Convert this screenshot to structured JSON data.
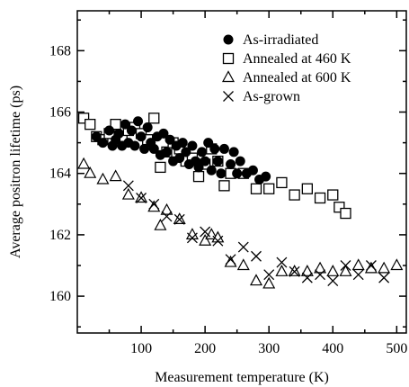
{
  "chart_data": {
    "type": "scatter",
    "title": "",
    "xlabel": "Measurement temperature (K)",
    "ylabel": "Average positron lifetime (ps)",
    "xlim": [
      0,
      515
    ],
    "ylim": [
      158.8,
      169.3
    ],
    "x_major_ticks": [
      100,
      200,
      300,
      400,
      500
    ],
    "x_minor_ticks": [
      50,
      150,
      250,
      350,
      450
    ],
    "y_major_ticks": [
      160,
      162,
      164,
      166,
      168
    ],
    "y_minor_ticks": [
      159,
      161,
      163,
      165,
      167,
      169
    ],
    "x_tick_labels": [
      "100",
      "200",
      "300",
      "400",
      "500"
    ],
    "y_tick_labels": [
      "160",
      "162",
      "164",
      "166",
      "168"
    ],
    "legend_position": "top-right",
    "grid": false,
    "series": [
      {
        "name": "As-irradiated",
        "marker": "filled-circle",
        "color": "#000000",
        "points": [
          [
            30,
            165.2
          ],
          [
            40,
            165.0
          ],
          [
            50,
            165.4
          ],
          [
            55,
            164.9
          ],
          [
            60,
            165.1
          ],
          [
            65,
            165.3
          ],
          [
            70,
            164.9
          ],
          [
            75,
            165.6
          ],
          [
            80,
            165.0
          ],
          [
            85,
            165.4
          ],
          [
            90,
            164.9
          ],
          [
            95,
            165.7
          ],
          [
            100,
            165.2
          ],
          [
            105,
            164.8
          ],
          [
            110,
            165.5
          ],
          [
            115,
            165.0
          ],
          [
            120,
            164.8
          ],
          [
            125,
            165.2
          ],
          [
            130,
            164.6
          ],
          [
            135,
            165.3
          ],
          [
            140,
            164.7
          ],
          [
            145,
            165.1
          ],
          [
            150,
            164.4
          ],
          [
            155,
            164.9
          ],
          [
            160,
            164.5
          ],
          [
            165,
            165.0
          ],
          [
            170,
            164.7
          ],
          [
            175,
            164.3
          ],
          [
            180,
            164.9
          ],
          [
            185,
            164.4
          ],
          [
            190,
            164.2
          ],
          [
            195,
            164.7
          ],
          [
            200,
            164.4
          ],
          [
            205,
            165.0
          ],
          [
            210,
            164.1
          ],
          [
            215,
            164.8
          ],
          [
            220,
            164.4
          ],
          [
            225,
            164.0
          ],
          [
            230,
            164.8
          ],
          [
            240,
            164.3
          ],
          [
            245,
            164.7
          ],
          [
            250,
            164.0
          ],
          [
            255,
            164.4
          ],
          [
            265,
            164.0
          ],
          [
            275,
            164.1
          ],
          [
            285,
            163.8
          ],
          [
            295,
            163.9
          ]
        ]
      },
      {
        "name": "Annealed at 460 K",
        "marker": "open-square",
        "color": "#000000",
        "points": [
          [
            10,
            165.8
          ],
          [
            20,
            165.6
          ],
          [
            30,
            165.2
          ],
          [
            40,
            165.1
          ],
          [
            50,
            165.3
          ],
          [
            60,
            165.6
          ],
          [
            70,
            165.2
          ],
          [
            80,
            165.4
          ],
          [
            90,
            165.5
          ],
          [
            100,
            165.3
          ],
          [
            110,
            165.1
          ],
          [
            120,
            165.8
          ],
          [
            130,
            164.2
          ],
          [
            140,
            164.7
          ],
          [
            150,
            165.0
          ],
          [
            160,
            164.8
          ],
          [
            170,
            164.4
          ],
          [
            180,
            164.5
          ],
          [
            190,
            163.9
          ],
          [
            200,
            164.3
          ],
          [
            210,
            164.8
          ],
          [
            220,
            164.4
          ],
          [
            230,
            163.6
          ],
          [
            240,
            164.0
          ],
          [
            260,
            164.0
          ],
          [
            280,
            163.5
          ],
          [
            300,
            163.5
          ],
          [
            320,
            163.7
          ],
          [
            340,
            163.3
          ],
          [
            360,
            163.5
          ],
          [
            380,
            163.2
          ],
          [
            400,
            163.3
          ],
          [
            410,
            162.9
          ],
          [
            420,
            162.7
          ]
        ]
      },
      {
        "name": "Annealed at 600 K",
        "marker": "open-triangle",
        "color": "#000000",
        "points": [
          [
            10,
            164.3
          ],
          [
            20,
            164.0
          ],
          [
            40,
            163.8
          ],
          [
            60,
            163.9
          ],
          [
            80,
            163.3
          ],
          [
            100,
            163.2
          ],
          [
            120,
            162.9
          ],
          [
            130,
            162.3
          ],
          [
            140,
            162.8
          ],
          [
            160,
            162.5
          ],
          [
            180,
            162.0
          ],
          [
            200,
            161.8
          ],
          [
            210,
            162.0
          ],
          [
            220,
            161.9
          ],
          [
            240,
            161.1
          ],
          [
            260,
            161.0
          ],
          [
            280,
            160.5
          ],
          [
            300,
            160.4
          ],
          [
            320,
            160.8
          ],
          [
            340,
            160.8
          ],
          [
            360,
            160.8
          ],
          [
            380,
            160.9
          ],
          [
            400,
            160.8
          ],
          [
            420,
            160.8
          ],
          [
            440,
            161.0
          ],
          [
            460,
            160.9
          ],
          [
            480,
            160.9
          ],
          [
            500,
            161.0
          ]
        ]
      },
      {
        "name": "As-grown",
        "marker": "cross",
        "color": "#000000",
        "points": [
          [
            80,
            163.6
          ],
          [
            100,
            163.2
          ],
          [
            120,
            163.0
          ],
          [
            140,
            162.6
          ],
          [
            160,
            162.5
          ],
          [
            180,
            161.9
          ],
          [
            200,
            162.1
          ],
          [
            220,
            161.8
          ],
          [
            240,
            161.2
          ],
          [
            260,
            161.6
          ],
          [
            280,
            161.3
          ],
          [
            300,
            160.7
          ],
          [
            320,
            161.1
          ],
          [
            340,
            160.8
          ],
          [
            360,
            160.6
          ],
          [
            380,
            160.7
          ],
          [
            400,
            160.5
          ],
          [
            420,
            161.0
          ],
          [
            440,
            160.7
          ],
          [
            460,
            161.0
          ],
          [
            480,
            160.6
          ]
        ]
      }
    ]
  }
}
